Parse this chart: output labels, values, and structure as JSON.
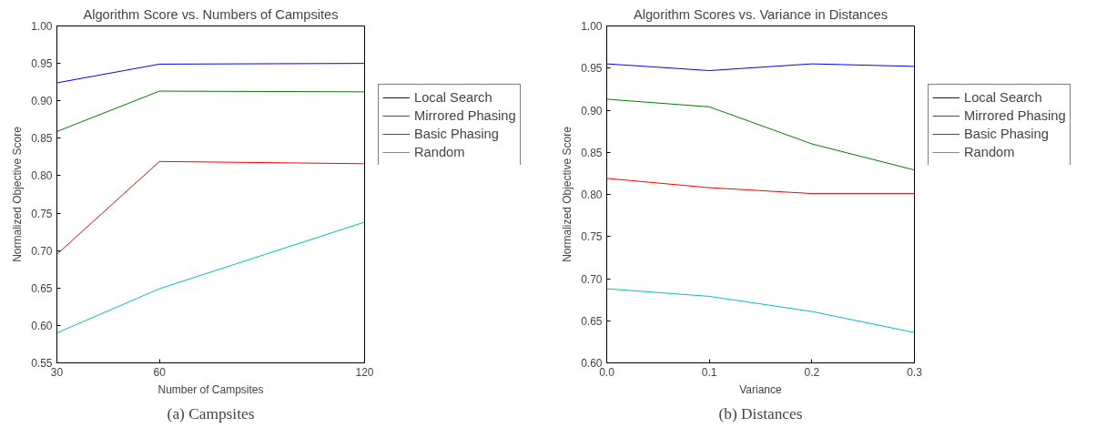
{
  "chart_data": [
    {
      "type": "line",
      "title": "Algorithm Score vs. Numbers of Campsites",
      "xlabel": "Number of Campsites",
      "ylabel": "Normalized Objective Score",
      "annotations": [
        "(a) Campsites"
      ],
      "x": [
        30,
        60,
        120
      ],
      "series": [
        {
          "name": "Local Search",
          "color": "#0000ff",
          "values": [
            0.924,
            0.949,
            0.95
          ]
        },
        {
          "name": "Mirrored Phasing",
          "color": "#008000",
          "values": [
            0.859,
            0.913,
            0.912
          ]
        },
        {
          "name": "Basic Phasing",
          "color": "#ff0000",
          "values": [
            0.695,
            0.819,
            0.816
          ]
        },
        {
          "name": "Random",
          "color": "#00bfbf",
          "values": [
            0.59,
            0.649,
            0.738
          ]
        }
      ],
      "xlim": [
        30,
        120
      ],
      "xticks": [
        30,
        60,
        120
      ],
      "ylim": [
        0.55,
        1.0
      ],
      "yticks": [
        {
          "value": 0.55,
          "label": "0.55"
        },
        {
          "value": 0.6,
          "label": "0.60"
        },
        {
          "value": 0.65,
          "label": "0.65"
        },
        {
          "value": 0.7,
          "label": "0.70"
        },
        {
          "value": 0.75,
          "label": "0.75"
        },
        {
          "value": 0.8,
          "label": "0.80"
        },
        {
          "value": 0.85,
          "label": "0.85"
        },
        {
          "value": 0.9,
          "label": "0.90"
        },
        {
          "value": 0.95,
          "label": "0.95"
        },
        {
          "value": 1.0,
          "label": "1.00"
        }
      ],
      "grid": false,
      "legend": "top right",
      "line_style": "solid"
    },
    {
      "type": "line",
      "title": "Algorithm Scores vs. Variance in Distances",
      "xlabel": "Variance",
      "ylabel": "Normalized Objective Score",
      "annotations": [
        "(b) Distances"
      ],
      "x": [
        0,
        0.1,
        0.2,
        0.3
      ],
      "series": [
        {
          "name": "Local Search",
          "color": "#0000ff",
          "values": [
            0.955,
            0.947,
            0.955,
            0.952
          ]
        },
        {
          "name": "Mirrored Phasing",
          "color": "#008000",
          "values": [
            0.913,
            0.904,
            0.86,
            0.829
          ]
        },
        {
          "name": "Basic Phasing",
          "color": "#ff0000",
          "values": [
            0.819,
            0.808,
            0.801,
            0.801
          ]
        },
        {
          "name": "Random",
          "color": "#00bfbf",
          "values": [
            0.688,
            0.679,
            0.661,
            0.636
          ]
        }
      ],
      "xlim": [
        0,
        0.3
      ],
      "xticks": [
        {
          "value": 0,
          "label": "0.0"
        },
        {
          "value": 0.1,
          "label": "0.1"
        },
        {
          "value": 0.2,
          "label": "0.2"
        },
        {
          "value": 0.3,
          "label": "0.3"
        }
      ],
      "ylim": [
        0.6,
        1.0
      ],
      "yticks": [
        {
          "value": 0.6,
          "label": "0.60"
        },
        {
          "value": 0.65,
          "label": "0.65"
        },
        {
          "value": 0.7,
          "label": "0.70"
        },
        {
          "value": 0.75,
          "label": "0.75"
        },
        {
          "value": 0.8,
          "label": "0.80"
        },
        {
          "value": 0.85,
          "label": "0.85"
        },
        {
          "value": 0.9,
          "label": "0.90"
        },
        {
          "value": 0.95,
          "label": "0.95"
        },
        {
          "value": 1.0,
          "label": "1.00"
        }
      ],
      "grid": false,
      "legend": "top right",
      "line_style": "solid"
    }
  ]
}
